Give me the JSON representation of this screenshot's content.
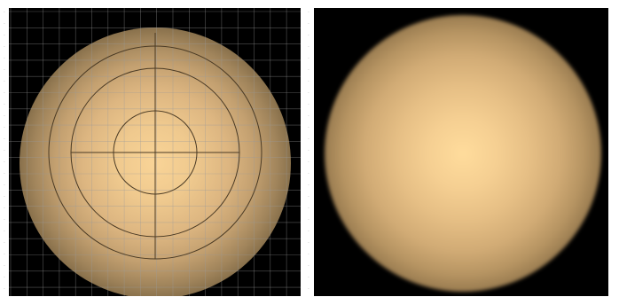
{
  "viewports": [
    {
      "name": "left",
      "description_label": "",
      "grid": true,
      "overlay_circles": true,
      "center_color": "#f9d497"
    },
    {
      "name": "right",
      "description_label": "",
      "grid": false,
      "overlay_circles": false,
      "center_color": "#ffdc9c"
    }
  ],
  "colors": {
    "background": "#000000",
    "glow_center": "#ffdc9c",
    "grid": "#9a9a9a",
    "overlay_line": "#4a3a24"
  }
}
